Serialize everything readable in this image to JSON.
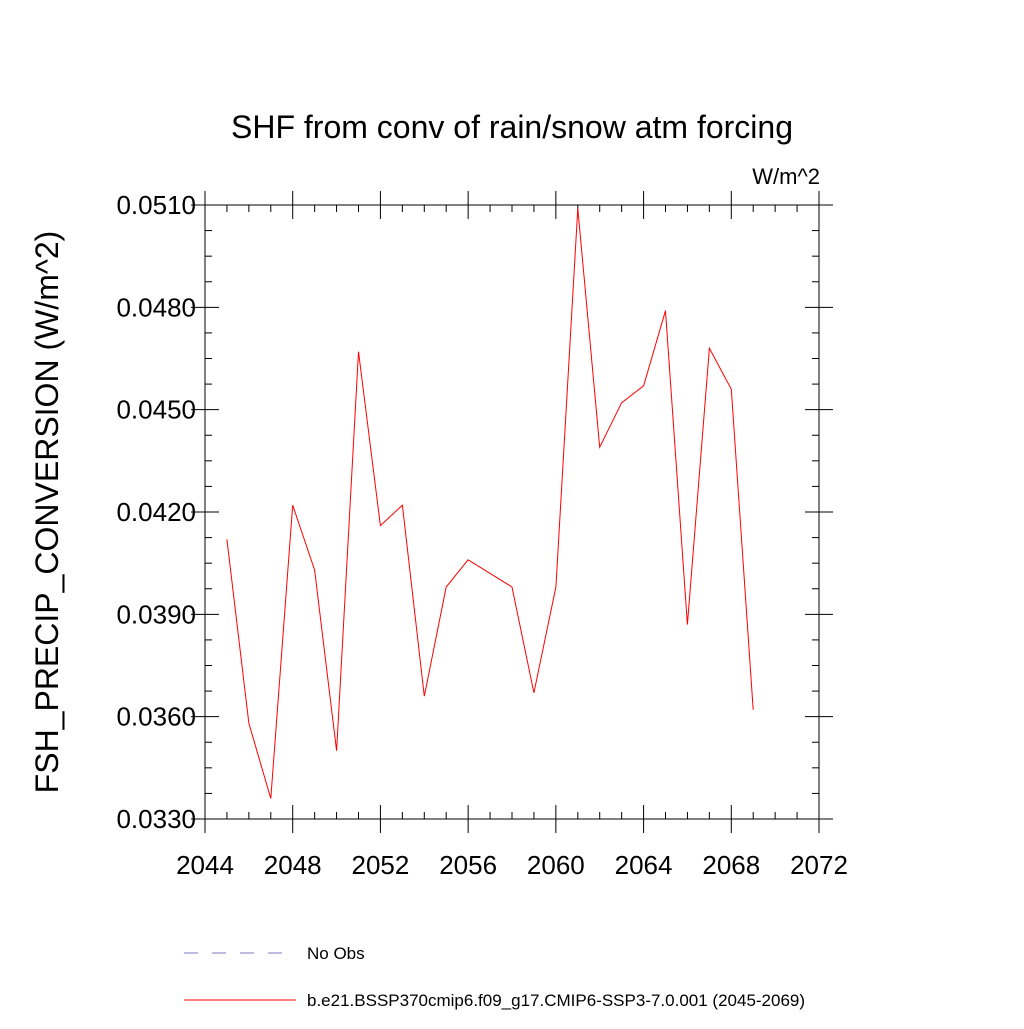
{
  "chart_data": {
    "type": "line",
    "title": "SHF from conv of rain/snow atm forcing",
    "units_label": "W/m^2",
    "ylabel": "FSH_PRECIP_CONVERSION  (W/m^2)",
    "xlabel": "",
    "xlim": [
      2044,
      2072
    ],
    "ylim": [
      0.033,
      0.051
    ],
    "x_ticks": [
      2044,
      2048,
      2052,
      2056,
      2060,
      2064,
      2068,
      2072
    ],
    "x_tick_labels": [
      "2044",
      "2048",
      "2052",
      "2056",
      "2060",
      "2064",
      "2068",
      "2072"
    ],
    "y_ticks": [
      0.033,
      0.036,
      0.039,
      0.042,
      0.045,
      0.048,
      0.051
    ],
    "y_tick_labels": [
      "0.0330",
      "0.0360",
      "0.0390",
      "0.0420",
      "0.0450",
      "0.0480",
      "0.0510"
    ],
    "grid": false,
    "legend_placement": "bottom",
    "series": [
      {
        "name": "b.e21.BSSP370cmip6.f09_g17.CMIP6-SSP3-7.0.001 (2045-2069)",
        "color": "#ff0000",
        "style": "solid",
        "x": [
          2045,
          2046,
          2047,
          2048,
          2049,
          2050,
          2051,
          2052,
          2053,
          2054,
          2055,
          2056,
          2057,
          2058,
          2059,
          2060,
          2061,
          2062,
          2063,
          2064,
          2065,
          2066,
          2067,
          2068,
          2069
        ],
        "y": [
          0.0412,
          0.0358,
          0.0336,
          0.0422,
          0.0403,
          0.035,
          0.0467,
          0.0416,
          0.0422,
          0.0366,
          0.0398,
          0.0406,
          0.0402,
          0.0398,
          0.0367,
          0.0398,
          0.0509,
          0.0439,
          0.0452,
          0.0457,
          0.0479,
          0.0387,
          0.0468,
          0.0456,
          0.0362
        ]
      }
    ],
    "legend": [
      {
        "label": "No Obs",
        "color": "#7a7ac0",
        "style": "dashed"
      },
      {
        "label": "b.e21.BSSP370cmip6.f09_g17.CMIP6-SSP3-7.0.001 (2045-2069)",
        "color": "#ff0000",
        "style": "solid"
      }
    ]
  }
}
